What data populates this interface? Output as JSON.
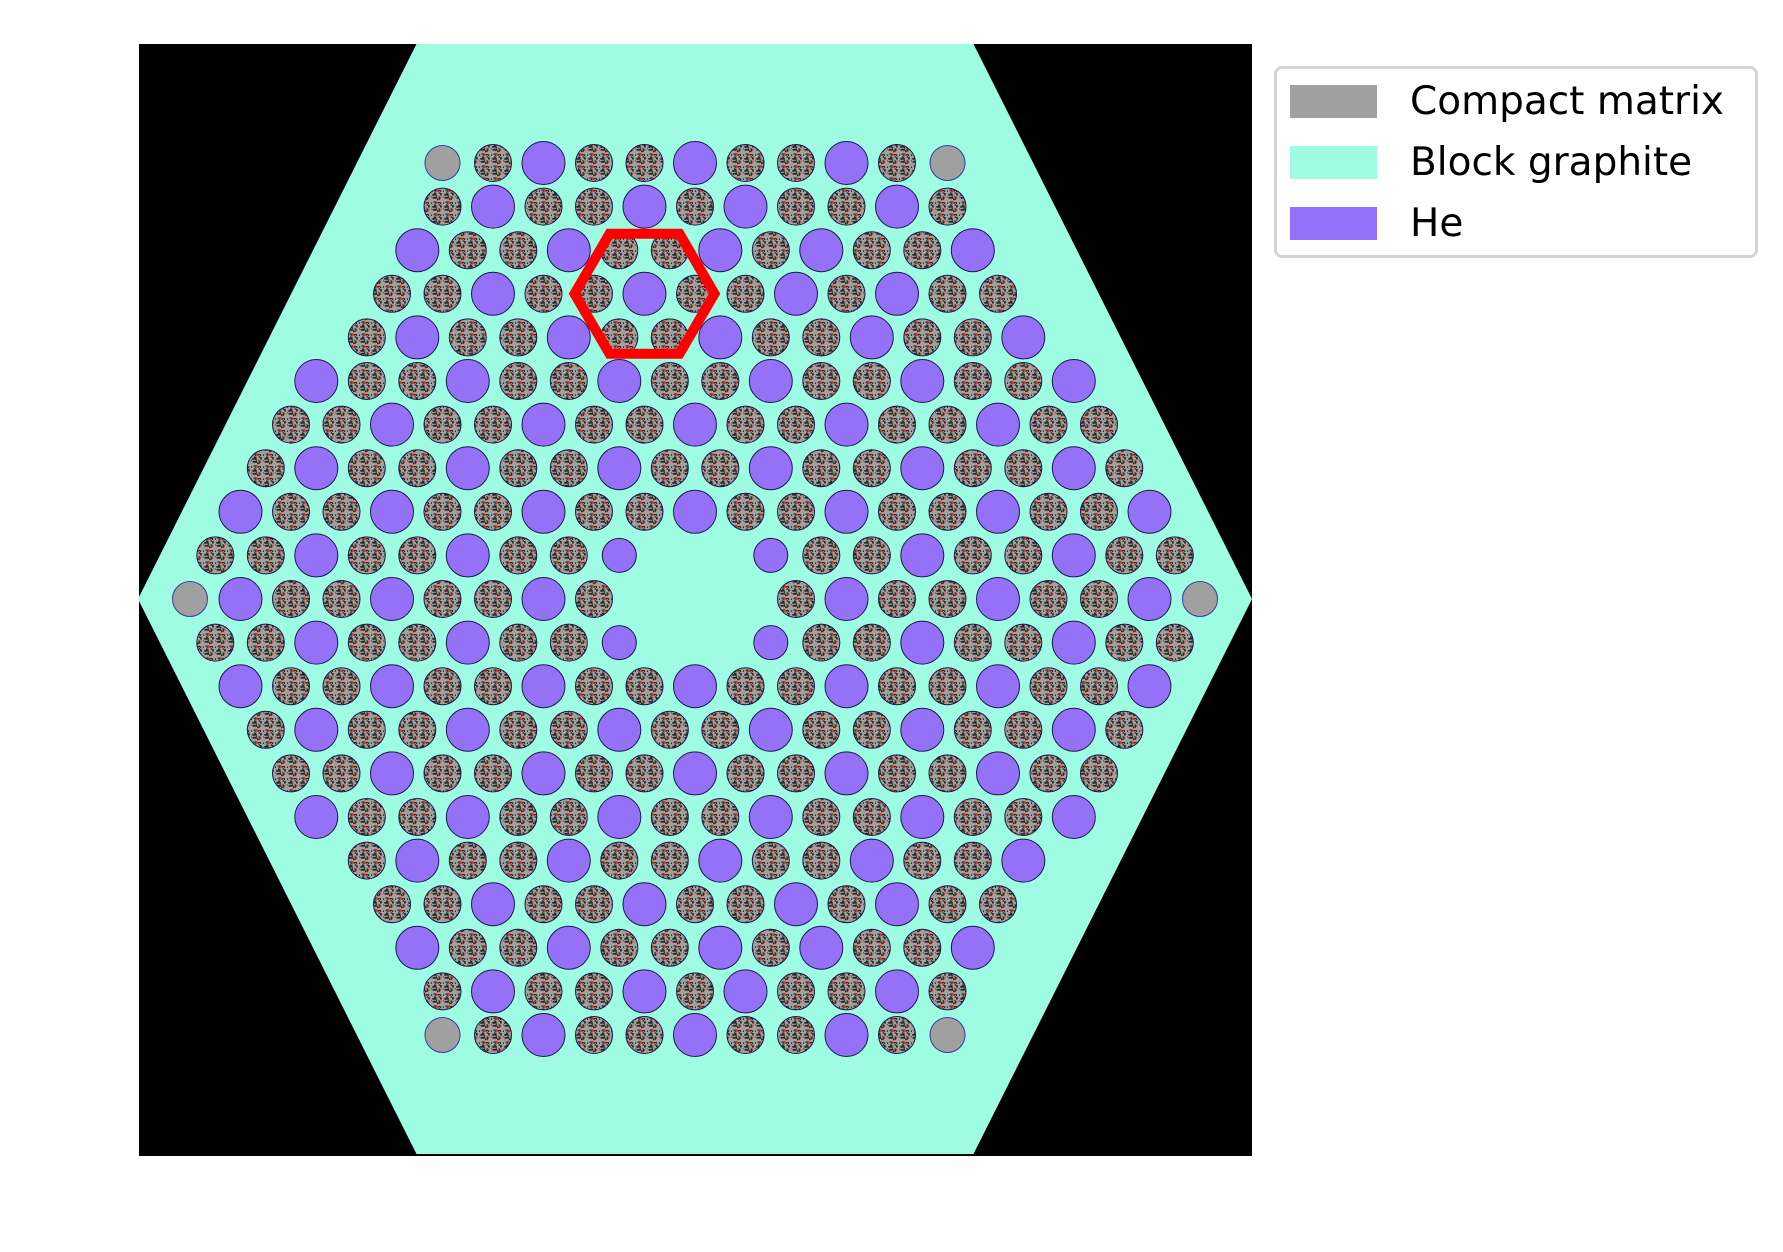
{
  "colors": {
    "background": "#000000",
    "block_graphite": "#9efce2",
    "helium": "#9471f6",
    "compact_matrix": "#a0a0a0",
    "compact_speckle": "#2b2620",
    "particle_red": "#c23b2a",
    "highlight": "#ff0000"
  },
  "legend": {
    "items": [
      {
        "label": "Compact matrix",
        "color": "#a0a0a0"
      },
      {
        "label": "Block graphite",
        "color": "#9efce2"
      },
      {
        "label": "He",
        "color": "#9471f6"
      }
    ]
  },
  "lattice": {
    "layout": "hexagonal fuel block, triangular pitch",
    "rows": [
      "B C H C C H C C H C B",
      "C H C C H C H C C H C",
      "H C C H C C H C H C C H",
      "C C H C C H C C H C H C C",
      "C H C C H C C H C C H C C H",
      "H C C H C C H C C H C C H C C H",
      "C C H C C H C C H C C H C C H C C",
      "C H C C H C C H C C H C C H C C H C",
      "H C C H C C H C C H C C H C C H C C H",
      "C C H C C H C C h . . h C C H C C H C C",
      "B H C C H C C H C . . . C H C C H C C H B",
      "C C H C C H C C h . . h C C H C C H C C",
      "H C C H C C H C C H C C H C C H C C H",
      "C H C C H C C H C C H C C H C C H C",
      "C C H C C H C C H C C H C C H C C",
      "H C C H C C H C C H C C H C C H",
      "C H C C H C C H C C H C C H",
      "C C H C C H C C H C H C C",
      "H C C H C C H C H C C H",
      "C H C C H C H C C H C",
      "B C H C C H C C H C B"
    ],
    "highlighted_unit_cell": {
      "row": 3,
      "col": 5
    }
  }
}
